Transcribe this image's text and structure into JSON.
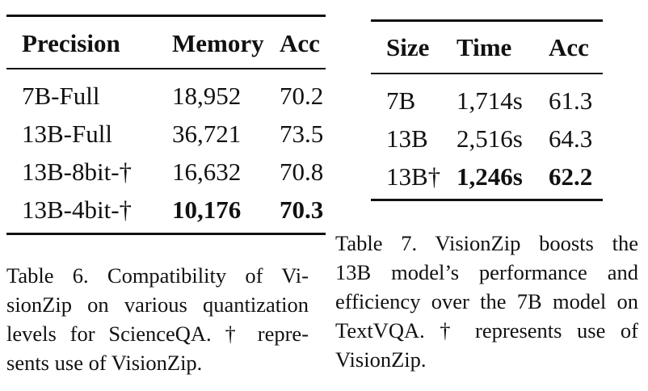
{
  "table6": {
    "headers": [
      "Precision",
      "Memory",
      "Acc"
    ],
    "rows": [
      [
        "7B-Full",
        "18,952",
        "70.2"
      ],
      [
        "13B-Full",
        "36,721",
        "73.5"
      ],
      [
        "13B-8bit-†",
        "16,632",
        "70.8"
      ],
      [
        "13B-4bit-†",
        "10,176",
        "70.3"
      ]
    ],
    "caption_lines": [
      "Table 6.  Compatibility of Vi-",
      "sionZip on various quantization",
      "levels for ScienceQA. † repre-",
      "sents use of VisionZip."
    ]
  },
  "table7": {
    "headers": [
      "Size",
      "Time",
      "Acc"
    ],
    "rows": [
      [
        "7B",
        "1,714s",
        "61.3"
      ],
      [
        "13B",
        "2,516s",
        "64.3"
      ],
      [
        "13B†",
        "1,246s",
        "62.2"
      ]
    ],
    "caption_lines": [
      "Table 7.  VisionZip boosts the",
      "13B model’s performance and",
      "efficiency over the 7B model on",
      "TextVQA. † represents use of",
      "VisionZip."
    ]
  }
}
